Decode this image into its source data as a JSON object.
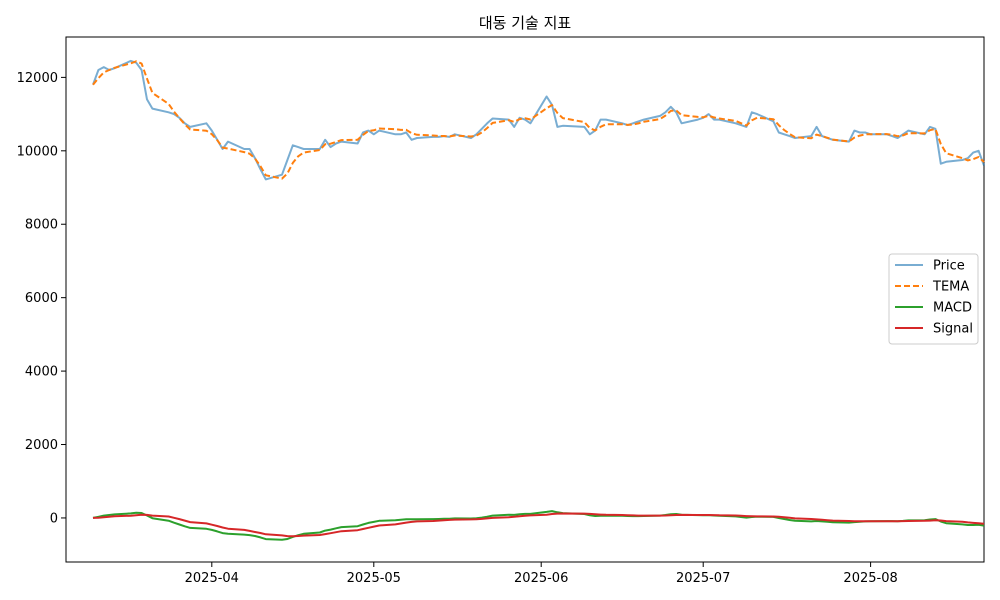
{
  "chart_data": {
    "type": "line",
    "title": "대동 기술 지표",
    "xlabel": "",
    "ylabel": "",
    "ylim": [
      -1200,
      13100
    ],
    "xlim": [
      "2025-03-05",
      "2025-08-22"
    ],
    "grid": false,
    "legend_position": "center-right",
    "y_ticks": [
      0,
      2000,
      4000,
      6000,
      8000,
      10000,
      12000
    ],
    "y_tick_labels": [
      "0",
      "2000",
      "4000",
      "6000",
      "8000",
      "10000",
      "12000"
    ],
    "x_ticks": [
      "2025-04-01",
      "2025-05-01",
      "2025-06-01",
      "2025-07-01",
      "2025-08-01"
    ],
    "x_tick_labels": [
      "2025-04",
      "2025-05",
      "2025-06",
      "2025-07",
      "2025-08"
    ],
    "series": [
      {
        "name": "Price",
        "color": "#1f77b4",
        "style": "solid",
        "opacity": 0.6,
        "points": [
          [
            "2025-03-10",
            11800
          ],
          [
            "2025-03-11",
            12200
          ],
          [
            "2025-03-12",
            12280
          ],
          [
            "2025-03-13",
            12200
          ],
          [
            "2025-03-14",
            12250
          ],
          [
            "2025-03-17",
            12450
          ],
          [
            "2025-03-18",
            12400
          ],
          [
            "2025-03-19",
            12200
          ],
          [
            "2025-03-20",
            11400
          ],
          [
            "2025-03-21",
            11150
          ],
          [
            "2025-03-24",
            11050
          ],
          [
            "2025-03-25",
            11000
          ],
          [
            "2025-03-26",
            10900
          ],
          [
            "2025-03-27",
            10750
          ],
          [
            "2025-03-28",
            10650
          ],
          [
            "2025-03-31",
            10750
          ],
          [
            "2025-04-01",
            10550
          ],
          [
            "2025-04-02",
            10300
          ],
          [
            "2025-04-03",
            10050
          ],
          [
            "2025-04-04",
            10250
          ],
          [
            "2025-04-07",
            10050
          ],
          [
            "2025-04-08",
            10050
          ],
          [
            "2025-04-09",
            9800
          ],
          [
            "2025-04-10",
            9500
          ],
          [
            "2025-04-11",
            9220
          ],
          [
            "2025-04-14",
            9350
          ],
          [
            "2025-04-15",
            9750
          ],
          [
            "2025-04-16",
            10150
          ],
          [
            "2025-04-17",
            10100
          ],
          [
            "2025-04-18",
            10050
          ],
          [
            "2025-04-21",
            10050
          ],
          [
            "2025-04-22",
            10300
          ],
          [
            "2025-04-23",
            10100
          ],
          [
            "2025-04-24",
            10200
          ],
          [
            "2025-04-25",
            10250
          ],
          [
            "2025-04-28",
            10200
          ],
          [
            "2025-04-29",
            10500
          ],
          [
            "2025-04-30",
            10550
          ],
          [
            "2025-05-01",
            10450
          ],
          [
            "2025-05-02",
            10550
          ],
          [
            "2025-05-05",
            10450
          ],
          [
            "2025-05-06",
            10450
          ],
          [
            "2025-05-07",
            10500
          ],
          [
            "2025-05-08",
            10300
          ],
          [
            "2025-05-09",
            10350
          ],
          [
            "2025-05-12",
            10380
          ],
          [
            "2025-05-13",
            10380
          ],
          [
            "2025-05-14",
            10400
          ],
          [
            "2025-05-15",
            10380
          ],
          [
            "2025-05-16",
            10450
          ],
          [
            "2025-05-19",
            10350
          ],
          [
            "2025-05-20",
            10450
          ],
          [
            "2025-05-21",
            10600
          ],
          [
            "2025-05-22",
            10750
          ],
          [
            "2025-05-23",
            10880
          ],
          [
            "2025-05-26",
            10850
          ],
          [
            "2025-05-27",
            10650
          ],
          [
            "2025-05-28",
            10900
          ],
          [
            "2025-05-29",
            10850
          ],
          [
            "2025-05-30",
            10750
          ],
          [
            "2025-06-02",
            11480
          ],
          [
            "2025-06-03",
            11250
          ],
          [
            "2025-06-04",
            10650
          ],
          [
            "2025-06-05",
            10680
          ],
          [
            "2025-06-09",
            10650
          ],
          [
            "2025-06-10",
            10450
          ],
          [
            "2025-06-11",
            10550
          ],
          [
            "2025-06-12",
            10850
          ],
          [
            "2025-06-13",
            10850
          ],
          [
            "2025-06-16",
            10750
          ],
          [
            "2025-06-17",
            10700
          ],
          [
            "2025-06-18",
            10750
          ],
          [
            "2025-06-19",
            10800
          ],
          [
            "2025-06-20",
            10850
          ],
          [
            "2025-06-23",
            10950
          ],
          [
            "2025-06-24",
            11050
          ],
          [
            "2025-06-25",
            11200
          ],
          [
            "2025-06-26",
            11050
          ],
          [
            "2025-06-27",
            10750
          ],
          [
            "2025-06-30",
            10850
          ],
          [
            "2025-07-01",
            10900
          ],
          [
            "2025-07-02",
            11000
          ],
          [
            "2025-07-03",
            10850
          ],
          [
            "2025-07-04",
            10850
          ],
          [
            "2025-07-07",
            10750
          ],
          [
            "2025-07-08",
            10700
          ],
          [
            "2025-07-09",
            10650
          ],
          [
            "2025-07-10",
            11050
          ],
          [
            "2025-07-11",
            11000
          ],
          [
            "2025-07-14",
            10800
          ],
          [
            "2025-07-15",
            10500
          ],
          [
            "2025-07-16",
            10450
          ],
          [
            "2025-07-17",
            10400
          ],
          [
            "2025-07-18",
            10350
          ],
          [
            "2025-07-21",
            10400
          ],
          [
            "2025-07-22",
            10650
          ],
          [
            "2025-07-23",
            10400
          ],
          [
            "2025-07-24",
            10350
          ],
          [
            "2025-07-25",
            10300
          ],
          [
            "2025-07-28",
            10250
          ],
          [
            "2025-07-29",
            10550
          ],
          [
            "2025-07-30",
            10500
          ],
          [
            "2025-07-31",
            10500
          ],
          [
            "2025-08-01",
            10450
          ],
          [
            "2025-08-04",
            10450
          ],
          [
            "2025-08-05",
            10400
          ],
          [
            "2025-08-06",
            10350
          ],
          [
            "2025-08-07",
            10450
          ],
          [
            "2025-08-08",
            10550
          ],
          [
            "2025-08-11",
            10450
          ],
          [
            "2025-08-12",
            10650
          ],
          [
            "2025-08-13",
            10600
          ],
          [
            "2025-08-14",
            9650
          ],
          [
            "2025-08-15",
            9700
          ],
          [
            "2025-08-18",
            9750
          ],
          [
            "2025-08-19",
            9800
          ],
          [
            "2025-08-20",
            9950
          ],
          [
            "2025-08-21",
            10000
          ],
          [
            "2025-08-22",
            9600
          ]
        ]
      },
      {
        "name": "TEMA",
        "color": "#ff7f0e",
        "style": "dashed",
        "opacity": 1,
        "points": []
      },
      {
        "name": "MACD",
        "color": "#2ca02c",
        "style": "solid",
        "opacity": 1,
        "points": []
      },
      {
        "name": "Signal",
        "color": "#d62728",
        "style": "solid",
        "opacity": 1,
        "points": []
      }
    ]
  }
}
